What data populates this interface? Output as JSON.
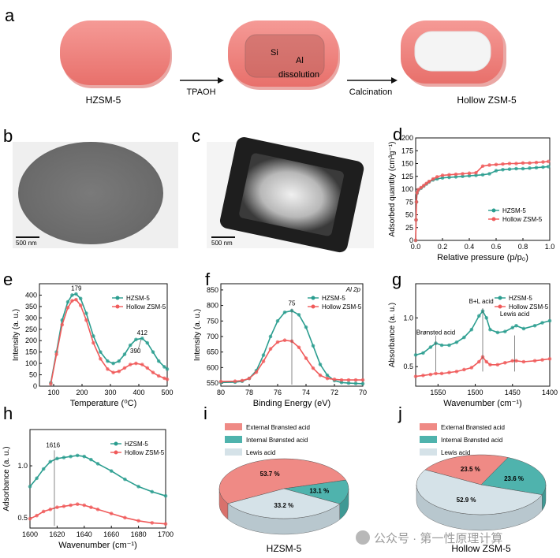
{
  "panels": {
    "a": {
      "letter": "a",
      "labels": {
        "hzsm5": "HZSM-5",
        "tpaoh": "TPAOH",
        "si": "Si",
        "al": "Al",
        "dissolution": "dissolution",
        "calcination": "Calcination",
        "hollow": "Hollow ZSM-5"
      }
    },
    "b": {
      "letter": "b",
      "scale_bar": "500 nm"
    },
    "c": {
      "letter": "c",
      "scale_bar": "500 nm"
    }
  },
  "watermark": "公众号 · 第一性原理计算",
  "colors": {
    "hzsm5": "#2a9d8f",
    "hollow": "#f05a5a",
    "ext": "#ef8a85",
    "int": "#4fb3ad",
    "lewis": "#d5e2e8"
  },
  "chart_data": [
    {
      "id": "d",
      "letter": "d",
      "type": "scatter",
      "xlabel": "Relative pressure (p/p₀)",
      "ylabel": "Adsorbed quantity (cm³g⁻¹)",
      "xlim": [
        0,
        1
      ],
      "ylim": [
        0,
        200
      ],
      "xticks": [
        "0.0",
        "0.2",
        "0.4",
        "0.6",
        "0.8",
        "1.0"
      ],
      "yticks": [
        "0",
        "25",
        "50",
        "75",
        "100",
        "125",
        "150",
        "175",
        "200"
      ],
      "legend": "middle-right",
      "series": [
        {
          "name": "HZSM-5",
          "x": [
            0.0,
            0.003,
            0.006,
            0.01,
            0.02,
            0.04,
            0.06,
            0.08,
            0.1,
            0.13,
            0.16,
            0.2,
            0.25,
            0.3,
            0.35,
            0.4,
            0.45,
            0.5,
            0.55,
            0.6,
            0.65,
            0.7,
            0.75,
            0.8,
            0.85,
            0.9,
            0.95,
            0.99
          ],
          "y": [
            0,
            40,
            75,
            92,
            98,
            102,
            106,
            110,
            114,
            118,
            120,
            122,
            123,
            124,
            125,
            126,
            127,
            128,
            130,
            136,
            138,
            139,
            140,
            140,
            141,
            142,
            143,
            144
          ]
        },
        {
          "name": "Hollow ZSM-5",
          "x": [
            0.0,
            0.003,
            0.006,
            0.01,
            0.02,
            0.04,
            0.06,
            0.08,
            0.1,
            0.13,
            0.16,
            0.2,
            0.25,
            0.3,
            0.35,
            0.4,
            0.45,
            0.5,
            0.55,
            0.6,
            0.65,
            0.7,
            0.75,
            0.8,
            0.85,
            0.9,
            0.95,
            0.99
          ],
          "y": [
            0,
            40,
            75,
            93,
            99,
            103,
            107,
            111,
            115,
            120,
            124,
            127,
            128,
            129,
            130,
            131,
            132,
            145,
            147,
            148,
            149,
            150,
            150,
            151,
            151,
            152,
            153,
            154
          ]
        }
      ]
    },
    {
      "id": "e",
      "letter": "e",
      "type": "line",
      "xlabel": "Temperature (⁰C)",
      "ylabel": "Intensity (a. u.)",
      "xlim": [
        50,
        500
      ],
      "ylim": [
        0,
        450
      ],
      "xticks": [
        "100",
        "200",
        "300",
        "400",
        "500"
      ],
      "yticks": [
        "0",
        "50",
        "100",
        "150",
        "200",
        "250",
        "300",
        "350",
        "400"
      ],
      "legend": "top-right",
      "annotations": [
        "179",
        "412",
        "390"
      ],
      "series": [
        {
          "name": "HZSM-5",
          "x": [
            90,
            110,
            130,
            150,
            165,
            179,
            195,
            215,
            240,
            265,
            290,
            310,
            330,
            350,
            370,
            390,
            412,
            430,
            450,
            470,
            490,
            500
          ],
          "y": [
            15,
            150,
            290,
            370,
            400,
            405,
            385,
            320,
            220,
            150,
            110,
            100,
            110,
            140,
            180,
            205,
            210,
            190,
            150,
            110,
            85,
            75
          ]
        },
        {
          "name": "Hollow ZSM-5",
          "x": [
            90,
            110,
            130,
            150,
            165,
            179,
            195,
            215,
            240,
            265,
            290,
            310,
            330,
            350,
            370,
            390,
            412,
            430,
            450,
            470,
            490,
            500
          ],
          "y": [
            10,
            140,
            270,
            345,
            375,
            380,
            355,
            290,
            190,
            120,
            75,
            60,
            65,
            80,
            95,
            100,
            95,
            80,
            60,
            45,
            35,
            30
          ]
        }
      ]
    },
    {
      "id": "f",
      "letter": "f",
      "type": "line",
      "xlabel": "Binding Energy (eV)",
      "ylabel": "Intensity (a. u.)",
      "corner_label": "Al 2p",
      "xlim": [
        80,
        70
      ],
      "ylim": [
        540,
        870
      ],
      "xticks": [
        "80",
        "78",
        "76",
        "74",
        "72",
        "70"
      ],
      "yticks": [
        "550",
        "600",
        "650",
        "700",
        "750",
        "800",
        "850"
      ],
      "legend": "top-right",
      "annotations": [
        "75"
      ],
      "series": [
        {
          "name": "HZSM-5",
          "x": [
            80,
            79,
            78.5,
            78,
            77.5,
            77,
            76.5,
            76,
            75.5,
            75,
            74.5,
            74,
            73.5,
            73,
            72.5,
            72,
            71.5,
            71,
            70.5,
            70
          ],
          "y": [
            552,
            553,
            556,
            565,
            590,
            640,
            700,
            750,
            778,
            783,
            770,
            730,
            670,
            610,
            575,
            558,
            552,
            550,
            549,
            548
          ]
        },
        {
          "name": "Hollow ZSM-5",
          "x": [
            80,
            79,
            78.5,
            78,
            77.5,
            77,
            76.5,
            76,
            75.5,
            75,
            74.5,
            74,
            73.5,
            73,
            72.5,
            72,
            71.5,
            71,
            70.5,
            70
          ],
          "y": [
            555,
            556,
            558,
            565,
            585,
            620,
            660,
            682,
            688,
            685,
            665,
            630,
            598,
            575,
            565,
            562,
            560,
            560,
            560,
            560
          ]
        }
      ]
    },
    {
      "id": "g",
      "letter": "g",
      "type": "line",
      "xlabel": "Wavenumber (cm⁻¹)",
      "ylabel": "Absorbance (a. u.)",
      "xlim": [
        1580,
        1400
      ],
      "ylim": [
        0.3,
        1.35
      ],
      "xticks": [
        "1550",
        "1500",
        "1450",
        "1400"
      ],
      "yticks": [
        "0.5",
        "1.0"
      ],
      "legend": "top-right",
      "annotations": [
        "Brønsted acid",
        "B+L acid",
        "Lewis acid"
      ],
      "series": [
        {
          "name": "HZSM-5",
          "x": [
            1580,
            1570,
            1560,
            1553,
            1545,
            1535,
            1525,
            1515,
            1505,
            1495,
            1490,
            1485,
            1480,
            1470,
            1460,
            1450,
            1445,
            1435,
            1420,
            1410,
            1400
          ],
          "y": [
            0.62,
            0.64,
            0.7,
            0.74,
            0.72,
            0.72,
            0.75,
            0.8,
            0.88,
            1.02,
            1.07,
            1.0,
            0.88,
            0.85,
            0.86,
            0.9,
            0.92,
            0.89,
            0.92,
            0.95,
            0.97
          ]
        },
        {
          "name": "Hollow ZSM-5",
          "x": [
            1580,
            1570,
            1560,
            1553,
            1545,
            1535,
            1525,
            1515,
            1505,
            1495,
            1490,
            1485,
            1480,
            1470,
            1460,
            1450,
            1445,
            1435,
            1420,
            1410,
            1400
          ],
          "y": [
            0.4,
            0.41,
            0.42,
            0.43,
            0.43,
            0.44,
            0.45,
            0.47,
            0.49,
            0.55,
            0.6,
            0.55,
            0.52,
            0.52,
            0.54,
            0.56,
            0.56,
            0.55,
            0.56,
            0.57,
            0.58
          ]
        }
      ]
    },
    {
      "id": "h",
      "letter": "h",
      "type": "line",
      "xlabel": "Wavenumber (cm⁻¹)",
      "ylabel": "Adsorbance (a. u.)",
      "xlim": [
        1600,
        1700
      ],
      "ylim": [
        0.4,
        1.35
      ],
      "xticks": [
        "1600",
        "1620",
        "1640",
        "1660",
        "1680",
        "1700"
      ],
      "yticks": [
        "0.5",
        "1.0"
      ],
      "legend": "top-right",
      "annotations": [
        "1616"
      ],
      "series": [
        {
          "name": "HZSM-5",
          "x": [
            1600,
            1605,
            1610,
            1615,
            1620,
            1625,
            1630,
            1635,
            1640,
            1645,
            1650,
            1660,
            1670,
            1680,
            1690,
            1700
          ],
          "y": [
            0.8,
            0.88,
            0.97,
            1.04,
            1.07,
            1.08,
            1.09,
            1.1,
            1.09,
            1.06,
            1.02,
            0.95,
            0.87,
            0.8,
            0.75,
            0.71
          ]
        },
        {
          "name": "Hollow ZSM-5",
          "x": [
            1600,
            1605,
            1610,
            1615,
            1620,
            1625,
            1630,
            1635,
            1640,
            1645,
            1650,
            1660,
            1670,
            1680,
            1690,
            1700
          ],
          "y": [
            0.49,
            0.52,
            0.56,
            0.58,
            0.6,
            0.61,
            0.62,
            0.63,
            0.62,
            0.6,
            0.58,
            0.54,
            0.5,
            0.47,
            0.45,
            0.44
          ]
        }
      ]
    },
    {
      "id": "i",
      "letter": "i",
      "type": "pie",
      "caption": "HZSM-5",
      "legend": "top-left",
      "categories": [
        "External Brønsted acid",
        "Internal Brønsted acid",
        "Lewis acid"
      ],
      "values": [
        53.7,
        13.1,
        33.2
      ],
      "value_labels": [
        "53.7 %",
        "13.1 %",
        "33.2 %"
      ]
    },
    {
      "id": "j",
      "letter": "j",
      "type": "pie",
      "caption": "Hollow ZSM-5",
      "legend": "top-left",
      "categories": [
        "External Brønsted acid",
        "Internal Brønsted acid",
        "Lewis acid"
      ],
      "values": [
        23.5,
        23.6,
        52.9
      ],
      "value_labels": [
        "23.5 %",
        "23.6 %",
        "52.9 %"
      ]
    }
  ]
}
